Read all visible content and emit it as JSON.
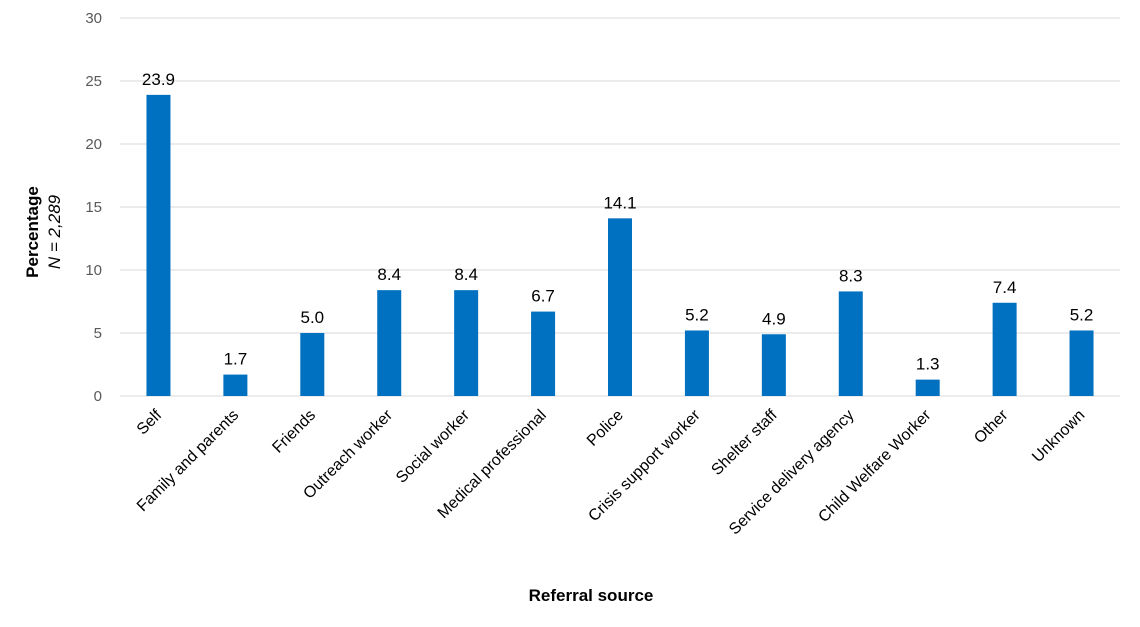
{
  "chart_data": {
    "type": "bar",
    "categories": [
      "Self",
      "Family and parents",
      "Friends",
      "Outreach worker",
      "Social worker",
      "Medical professional",
      "Police",
      "Crisis support worker",
      "Shelter staff",
      "Service delivery agency",
      "Child Welfare Worker",
      "Other",
      "Unknown"
    ],
    "values": [
      23.9,
      1.7,
      5.0,
      8.4,
      8.4,
      6.7,
      14.1,
      5.2,
      4.9,
      8.3,
      1.3,
      7.4,
      5.2
    ],
    "data_labels": [
      "23.9",
      "1.7",
      "5.0",
      "8.4",
      "8.4",
      "6.7",
      "14.1",
      "5.2",
      "4.9",
      "8.3",
      "1.3",
      "7.4",
      "5.2"
    ],
    "ylim": [
      0,
      30
    ],
    "yticks": [
      0,
      5,
      10,
      15,
      20,
      25,
      30
    ],
    "xlabel": "Referral source",
    "ylabel": "Percentage",
    "ylabel_sub": "N = 2,289",
    "grid": true,
    "bar_color": "#0070C0",
    "grid_color": "#D9D9D9"
  }
}
